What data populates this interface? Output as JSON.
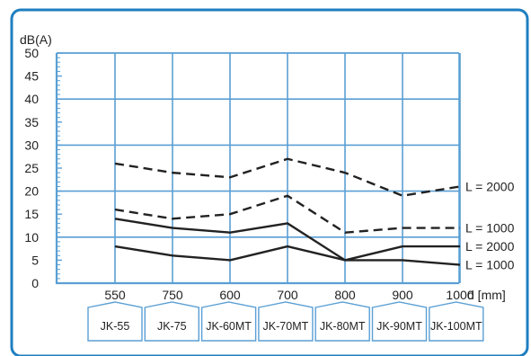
{
  "chart_data": {
    "type": "line",
    "ylabel": "dB(A)",
    "xlabel": "d [mm]",
    "ylim": [
      0,
      50
    ],
    "y_ticks": [
      0,
      5,
      10,
      15,
      20,
      25,
      30,
      35,
      40,
      45,
      50
    ],
    "categories": [
      "550",
      "750",
      "600",
      "700",
      "800",
      "900",
      "1000"
    ],
    "models": [
      "JK-55",
      "JK-75",
      "JK-60MT",
      "JK-70MT",
      "JK-80MT",
      "JK-90MT",
      "JK-100MT"
    ],
    "grid": true,
    "series": [
      {
        "name": "L = 2000",
        "style": "dashed",
        "values": [
          26,
          24,
          23,
          27,
          24,
          19,
          21
        ]
      },
      {
        "name": "L = 1000",
        "style": "dashed",
        "values": [
          16,
          14,
          15,
          19,
          11,
          12,
          12
        ]
      },
      {
        "name": "L = 2000",
        "style": "solid",
        "values": [
          14,
          12,
          11,
          13,
          5,
          8,
          8
        ]
      },
      {
        "name": "L = 1000",
        "style": "solid",
        "values": [
          8,
          6,
          5,
          8,
          5,
          5,
          4
        ]
      }
    ]
  },
  "colors": {
    "frame": "#1f7fc0",
    "grid": "#5a9fd4",
    "line": "#222222"
  }
}
